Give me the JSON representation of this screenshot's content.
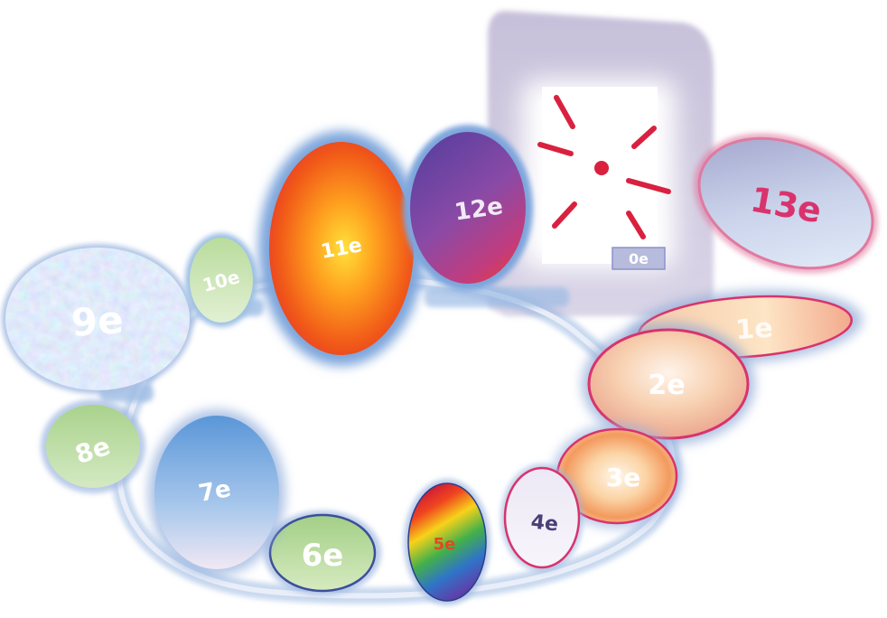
{
  "diagram": {
    "discs": [
      {
        "id": "9e",
        "label": "9e"
      },
      {
        "id": "10e",
        "label": "10e"
      },
      {
        "id": "11e",
        "label": "11e"
      },
      {
        "id": "12e",
        "label": "12e"
      },
      {
        "id": "13e",
        "label": "13e"
      },
      {
        "id": "1e",
        "label": "1e"
      },
      {
        "id": "2e",
        "label": "2e"
      },
      {
        "id": "3e",
        "label": "3e"
      },
      {
        "id": "4e",
        "label": "4e"
      },
      {
        "id": "5e",
        "label": "5e"
      },
      {
        "id": "6e",
        "label": "6e"
      },
      {
        "id": "7e",
        "label": "7e"
      },
      {
        "id": "8e",
        "label": "8e"
      }
    ],
    "center": {
      "label": "0e"
    }
  },
  "colors": {
    "ring": "#8fb0de",
    "crimson": "#d9213f",
    "panel": "#cbc4dc",
    "green_disc": "#b9d99a",
    "pink_rim": "#d8336d"
  }
}
